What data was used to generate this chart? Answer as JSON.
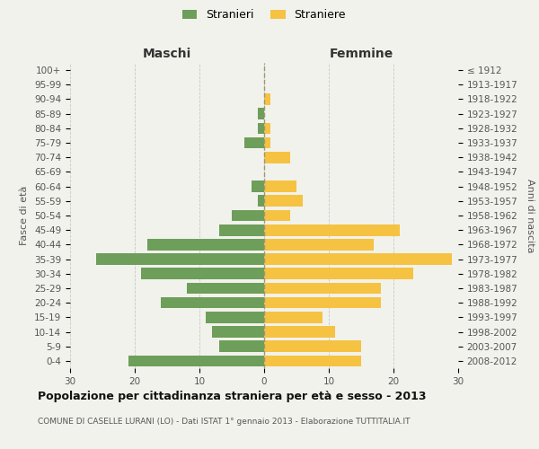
{
  "age_groups": [
    "0-4",
    "5-9",
    "10-14",
    "15-19",
    "20-24",
    "25-29",
    "30-34",
    "35-39",
    "40-44",
    "45-49",
    "50-54",
    "55-59",
    "60-64",
    "65-69",
    "70-74",
    "75-79",
    "80-84",
    "85-89",
    "90-94",
    "95-99",
    "100+"
  ],
  "birth_years": [
    "2008-2012",
    "2003-2007",
    "1998-2002",
    "1993-1997",
    "1988-1992",
    "1983-1987",
    "1978-1982",
    "1973-1977",
    "1968-1972",
    "1963-1967",
    "1958-1962",
    "1953-1957",
    "1948-1952",
    "1943-1947",
    "1938-1942",
    "1933-1937",
    "1928-1932",
    "1923-1927",
    "1918-1922",
    "1913-1917",
    "≤ 1912"
  ],
  "maschi": [
    21,
    7,
    8,
    9,
    16,
    12,
    19,
    26,
    18,
    7,
    5,
    1,
    2,
    0,
    0,
    3,
    1,
    1,
    0,
    0,
    0
  ],
  "femmine": [
    15,
    15,
    11,
    9,
    18,
    18,
    23,
    29,
    17,
    21,
    4,
    6,
    5,
    0,
    4,
    1,
    1,
    0,
    1,
    0,
    0
  ],
  "maschi_color": "#6d9e5a",
  "femmine_color": "#f5c242",
  "background_color": "#f2f2ec",
  "grid_color": "#c8c8c8",
  "center_line_color": "#999977",
  "title": "Popolazione per cittadinanza straniera per età e sesso - 2013",
  "subtitle": "COMUNE DI CASELLE LURANI (LO) - Dati ISTAT 1° gennaio 2013 - Elaborazione TUTTITALIA.IT",
  "xlabel_left": "Maschi",
  "xlabel_right": "Femmine",
  "ylabel_left": "Fasce di età",
  "ylabel_right": "Anni di nascita",
  "legend_stranieri": "Stranieri",
  "legend_straniere": "Straniere",
  "xlim": 30,
  "title_fontsize": 9,
  "subtitle_fontsize": 6.5,
  "tick_fontsize": 7.5,
  "header_fontsize": 10,
  "legend_fontsize": 9
}
